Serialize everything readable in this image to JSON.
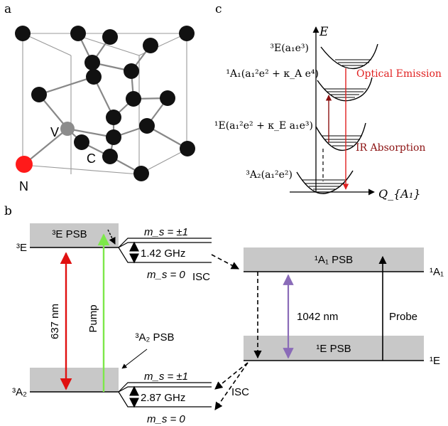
{
  "panels": {
    "a": {
      "label": "a",
      "atom_n": "N",
      "atom_v": "V",
      "atom_c": "C",
      "colors": {
        "carbon": "#111111",
        "vacancy": "#8c8c8c",
        "nitrogen": "#ff1a1a"
      }
    },
    "b": {
      "label": "b"
    },
    "c": {
      "label": "c"
    }
  },
  "panel_c": {
    "axis_e": "E",
    "axis_q": "Q_{A₁}",
    "states": [
      {
        "name": "³E(a₁e³)"
      },
      {
        "name": "¹A₁(a₁²e² + κ_A e⁴)"
      },
      {
        "name": "¹E(a₁²e² + κ_E a₁e³)"
      },
      {
        "name": "³A₂(a₁²e²)"
      }
    ],
    "optical_emission": "Optical Emission",
    "ir_absorption": "IR Absorption",
    "colors": {
      "emission": "#e02020",
      "absorption": "#8b1010"
    }
  },
  "panel_b": {
    "level_3E": "³E",
    "level_3A2": "³A₂",
    "level_1A1": "¹A₁",
    "level_1E": "¹E",
    "psb_3E": "³E PSB",
    "psb_3A2": "³A₂ PSB",
    "psb_1A1": "¹A₁ PSB",
    "psb_1E": "¹E PSB",
    "ms_pm1_top": "m_s = ±1",
    "ms_0_top": "m_s = 0",
    "ms_pm1_bottom": "m_s = ±1",
    "ms_0_bottom": "m_s = 0",
    "zfs_excited": "1.42 GHz",
    "zfs_ground": "2.87 GHz",
    "isc_top": "ISC",
    "isc_bottom": "ISC",
    "wavelength_637": "637 nm",
    "pump": "Pump",
    "wavelength_1042": "1042 nm",
    "probe": "Probe",
    "colors": {
      "red_arrow": "#e01010",
      "pump_arrow": "#7de84a",
      "ir_arrow": "#8a6bb8",
      "psb_fill": "#c8c8c8"
    }
  }
}
